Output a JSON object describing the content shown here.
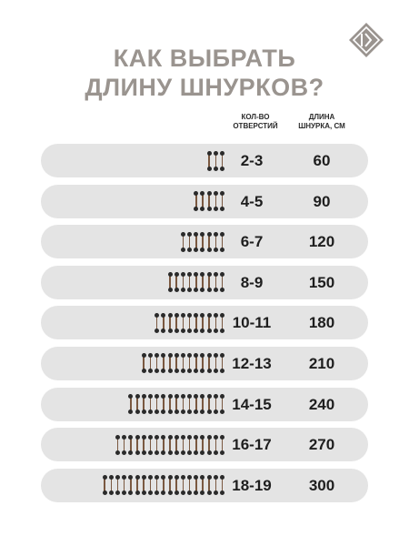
{
  "title": {
    "line1": "КАК ВЫБРАТЬ",
    "line2": "ДЛИНУ ШНУРКОВ?"
  },
  "logo": {
    "icon": "brand-logo-hexagon-icon",
    "color": "#9a948f"
  },
  "headers": {
    "holes_line1": "КОЛ-ВО",
    "holes_line2": "ОТВЕРСТИЙ",
    "length_line1": "ДЛИНА",
    "length_line2": "ШНУРКА, СМ"
  },
  "colors": {
    "title": "#9a948f",
    "row_bg": "#e4e4e4",
    "lace": "#7a5840",
    "dot": "#2a2a2a"
  },
  "rows": [
    {
      "holes": "2-3",
      "length": "60",
      "lace_icons": 3
    },
    {
      "holes": "4-5",
      "length": "90",
      "lace_icons": 5
    },
    {
      "holes": "6-7",
      "length": "120",
      "lace_icons": 7
    },
    {
      "holes": "8-9",
      "length": "150",
      "lace_icons": 9
    },
    {
      "holes": "10-11",
      "length": "180",
      "lace_icons": 11
    },
    {
      "holes": "12-13",
      "length": "210",
      "lace_icons": 13
    },
    {
      "holes": "14-15",
      "length": "240",
      "lace_icons": 15
    },
    {
      "holes": "16-17",
      "length": "270",
      "lace_icons": 17
    },
    {
      "holes": "18-19",
      "length": "300",
      "lace_icons": 19
    }
  ]
}
